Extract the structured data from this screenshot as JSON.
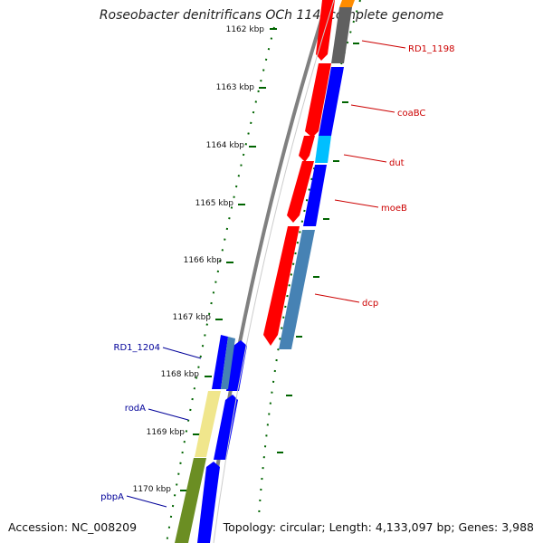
{
  "title": "Roseobacter denitrificans OCh 114, complete genome",
  "accession": "Accession: NC_008209",
  "topology": "Topology: circular; Length: 4,133,097 bp; Genes: 3,988",
  "ticks": [
    "1162 kbp",
    "1163 kbp",
    "1164 kbp",
    "1165 kbp",
    "1166 kbp",
    "1167 kbp",
    "1168 kbp",
    "1169 kbp",
    "1170 kbp"
  ],
  "gene_labels": {
    "right": [
      "RD1_1198",
      "coaBC",
      "dut",
      "moeB",
      "dcp"
    ],
    "left": [
      "RD1_1204",
      "rodA",
      "pbpA"
    ]
  },
  "colors": {
    "backbone": "#808080",
    "tick": "#006400",
    "cds": "#ff0000",
    "forward": "#0000ff",
    "right_label": "#cc0000",
    "left_label": "#000099",
    "cog_gray": "#606060",
    "cog_cyan": "#00bfff",
    "cog_steel": "#4682b4",
    "cog_khaki": "#f0e68c",
    "cog_olive": "#6b8e23",
    "cog_orange": "#ff8c00"
  }
}
